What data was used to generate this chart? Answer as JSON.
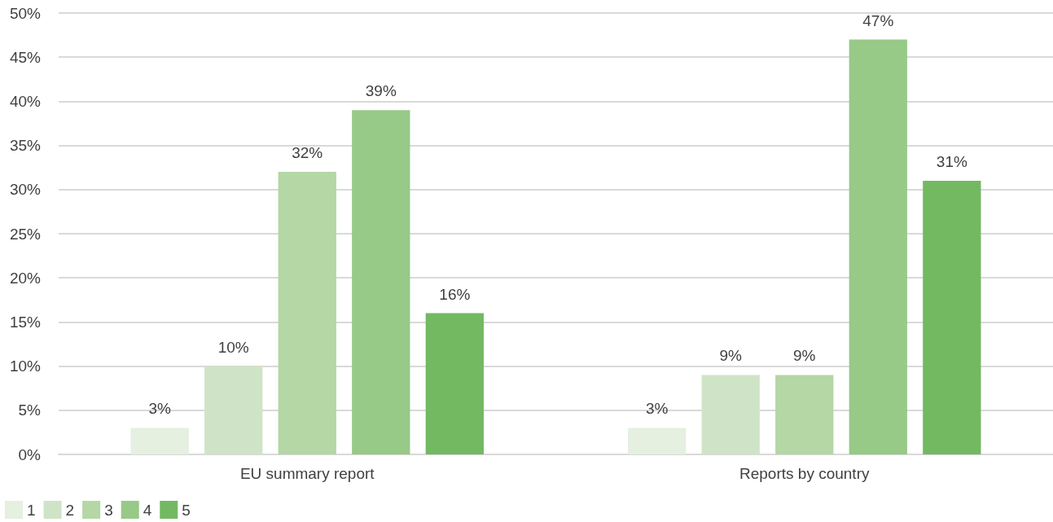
{
  "chart_data": {
    "type": "bar",
    "categories": [
      "EU summary report",
      "Reports by country"
    ],
    "series": [
      {
        "name": "1",
        "color": "#e5f0e0",
        "values": [
          3,
          3
        ],
        "value_labels": [
          "3%",
          "3%"
        ]
      },
      {
        "name": "2",
        "color": "#cfe4c6",
        "values": [
          10,
          9
        ],
        "value_labels": [
          "10%",
          "9%"
        ]
      },
      {
        "name": "3",
        "color": "#b4d7a5",
        "values": [
          32,
          9
        ],
        "value_labels": [
          "32%",
          "9%"
        ]
      },
      {
        "name": "4",
        "color": "#97c987",
        "values": [
          39,
          47
        ],
        "value_labels": [
          "39%",
          "47%"
        ]
      },
      {
        "name": "5",
        "color": "#72b962",
        "values": [
          16,
          31
        ],
        "value_labels": [
          "16%",
          "31%"
        ]
      }
    ],
    "ylim": [
      0,
      50
    ],
    "yticks": [
      {
        "value": 0,
        "label": "0%"
      },
      {
        "value": 5,
        "label": "5%"
      },
      {
        "value": 10,
        "label": "10%"
      },
      {
        "value": 15,
        "label": "15%"
      },
      {
        "value": 20,
        "label": "20%"
      },
      {
        "value": 25,
        "label": "25%"
      },
      {
        "value": 30,
        "label": "30%"
      },
      {
        "value": 35,
        "label": "35%"
      },
      {
        "value": 40,
        "label": "40%"
      },
      {
        "value": 45,
        "label": "45%"
      },
      {
        "value": 50,
        "label": "50%"
      }
    ],
    "grid": "y",
    "legend": "bottom left"
  }
}
